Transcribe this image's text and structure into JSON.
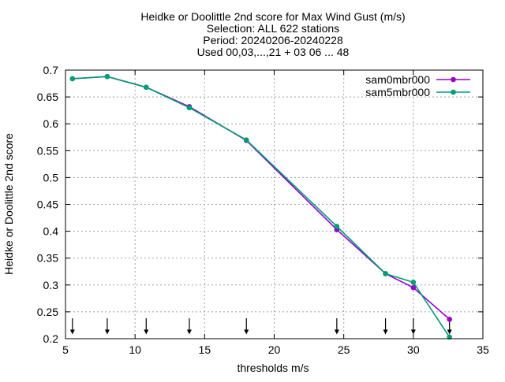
{
  "chart_data": {
    "type": "line",
    "title_lines": [
      "Heidke or Doolittle 2nd score  for Max Wind Gust (m/s)",
      "Selection: ALL    622 stations",
      "Period: 20240206-20240228",
      "Used 00,03,...,21 + 03 06 ... 48"
    ],
    "xlabel": "thresholds m/s",
    "ylabel": "Heidke or Doolittle 2nd score",
    "xlim": [
      5,
      35
    ],
    "ylim": [
      0.2,
      0.7
    ],
    "x_ticks": [
      5,
      10,
      15,
      20,
      25,
      30,
      35
    ],
    "x_tick_labels": [
      "5",
      "10",
      "15",
      "20",
      "25",
      "30",
      "35"
    ],
    "y_ticks": [
      0.2,
      0.25,
      0.3,
      0.35,
      0.4,
      0.45,
      0.5,
      0.55,
      0.6,
      0.65,
      0.7
    ],
    "y_tick_labels": [
      "0.2",
      "0.25",
      "0.3",
      "0.35",
      "0.4",
      "0.45",
      "0.5",
      "0.55",
      "0.6",
      "0.65",
      "0.7"
    ],
    "grid": true,
    "legend_position": "top-right",
    "x": [
      5.5,
      8.0,
      10.8,
      13.9,
      18.0,
      24.5,
      28.0,
      30.0,
      32.6
    ],
    "threshold_markers": [
      5.5,
      8.0,
      10.8,
      13.9,
      18.0,
      24.5,
      28.0,
      30.0,
      32.6
    ],
    "series": [
      {
        "name": "sam0mbr000",
        "color": "#9400d3",
        "values": [
          0.684,
          0.688,
          0.668,
          0.632,
          0.569,
          0.403,
          0.321,
          0.295,
          0.236
        ]
      },
      {
        "name": "sam5mbr000",
        "color": "#009e73",
        "values": [
          0.684,
          0.688,
          0.668,
          0.63,
          0.57,
          0.409,
          0.321,
          0.305,
          0.203
        ]
      }
    ]
  }
}
